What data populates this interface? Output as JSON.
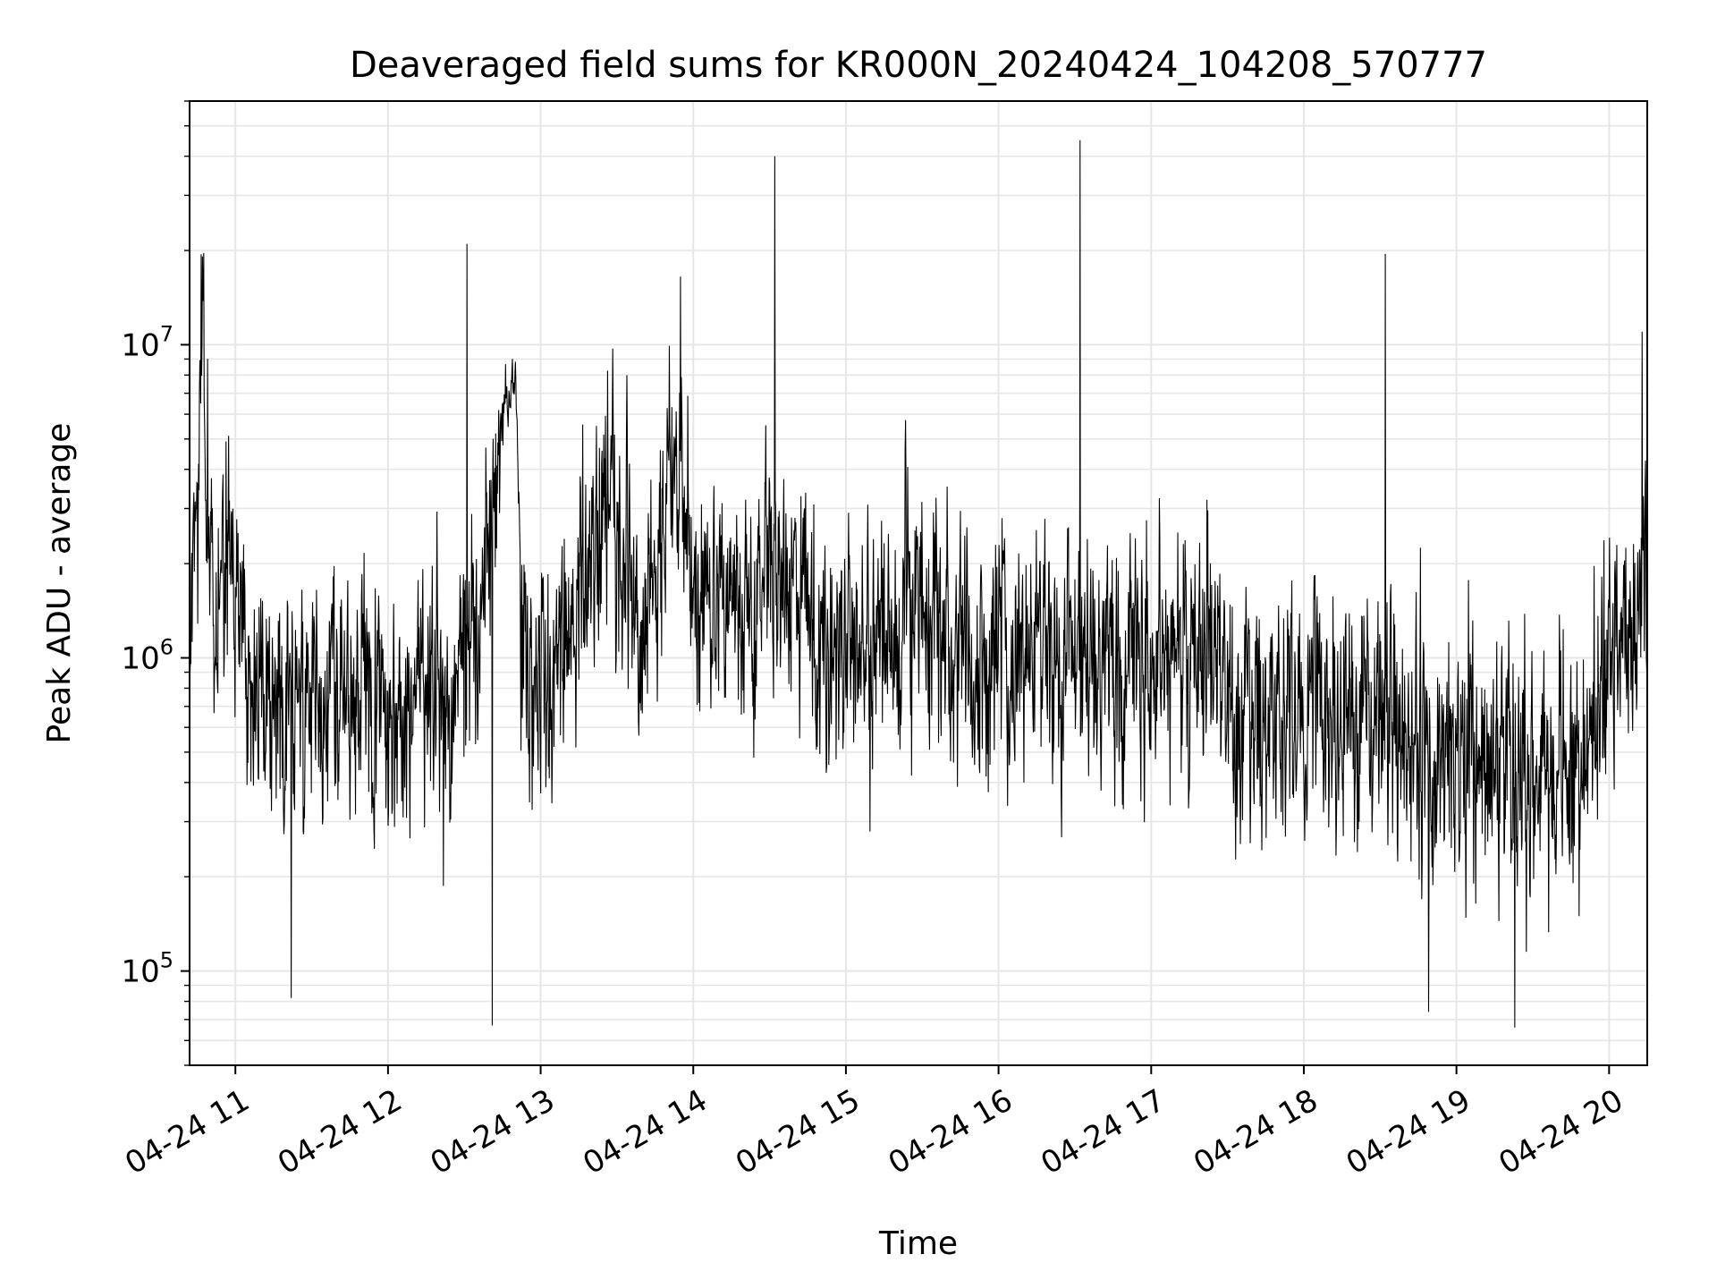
{
  "chart_data": {
    "type": "line",
    "title": "Deaveraged field sums for KR000N_20240424_104208_570777",
    "xlabel": "Time",
    "ylabel": "Peak ADU - average",
    "y_scale": "log",
    "ylim": [
      50000,
      60000000
    ],
    "xlim": [
      "2024-04-24 10:42",
      "2024-04-24 20:15"
    ],
    "x_ticks": [
      {
        "time": "2024-04-24 11:00",
        "label": "04-24 11"
      },
      {
        "time": "2024-04-24 12:00",
        "label": "04-24 12"
      },
      {
        "time": "2024-04-24 13:00",
        "label": "04-24 13"
      },
      {
        "time": "2024-04-24 14:00",
        "label": "04-24 14"
      },
      {
        "time": "2024-04-24 15:00",
        "label": "04-24 15"
      },
      {
        "time": "2024-04-24 16:00",
        "label": "04-24 16"
      },
      {
        "time": "2024-04-24 17:00",
        "label": "04-24 17"
      },
      {
        "time": "2024-04-24 18:00",
        "label": "04-24 18"
      },
      {
        "time": "2024-04-24 19:00",
        "label": "04-24 19"
      },
      {
        "time": "2024-04-24 20:00",
        "label": "04-24 20"
      }
    ],
    "y_ticks": [
      {
        "value": 100000,
        "base": "10",
        "exponent": "5"
      },
      {
        "value": 1000000,
        "base": "10",
        "exponent": "6"
      },
      {
        "value": 10000000,
        "base": "10",
        "exponent": "7"
      }
    ],
    "grid": true,
    "line_color": "#000000",
    "series": [
      {
        "x": [
          "2024-04-24 10:42",
          "2024-04-24 10:47",
          "2024-04-24 10:52",
          "2024-04-24 10:55",
          "2024-04-24 10:58",
          "2024-04-24 11:05",
          "2024-04-24 11:12",
          "2024-04-24 11:20",
          "2024-04-24 11:30",
          "2024-04-24 11:40",
          "2024-04-24 11:50",
          "2024-04-24 12:00",
          "2024-04-24 12:10",
          "2024-04-24 12:20",
          "2024-04-24 12:25",
          "2024-04-24 12:30",
          "2024-04-24 12:38",
          "2024-04-24 12:42",
          "2024-04-24 12:50",
          "2024-04-24 12:53",
          "2024-04-24 13:00",
          "2024-04-24 13:10",
          "2024-04-24 13:20",
          "2024-04-24 13:30",
          "2024-04-24 13:40",
          "2024-04-24 13:50",
          "2024-04-24 13:55",
          "2024-04-24 14:00",
          "2024-04-24 14:10",
          "2024-04-24 14:20",
          "2024-04-24 14:32",
          "2024-04-24 14:40",
          "2024-04-24 14:50",
          "2024-04-24 15:00",
          "2024-04-24 15:10",
          "2024-04-24 15:20",
          "2024-04-24 15:30",
          "2024-04-24 15:40",
          "2024-04-24 15:50",
          "2024-04-24 16:00",
          "2024-04-24 16:10",
          "2024-04-24 16:20",
          "2024-04-24 16:32",
          "2024-04-24 16:40",
          "2024-04-24 16:50",
          "2024-04-24 17:00",
          "2024-04-24 17:10",
          "2024-04-24 17:20",
          "2024-04-24 17:30",
          "2024-04-24 17:40",
          "2024-04-24 17:50",
          "2024-04-24 18:00",
          "2024-04-24 18:10",
          "2024-04-24 18:20",
          "2024-04-24 18:32",
          "2024-04-24 18:40",
          "2024-04-24 18:50",
          "2024-04-24 19:00",
          "2024-04-24 19:10",
          "2024-04-24 19:20",
          "2024-04-24 19:30",
          "2024-04-24 19:40",
          "2024-04-24 19:50",
          "2024-04-24 20:00",
          "2024-04-24 20:08",
          "2024-04-24 20:15"
        ],
        "y": [
          1200000,
          8000000,
          1000000,
          1800000,
          2500000,
          900000,
          700000,
          650000,
          700000,
          750000,
          750000,
          650000,
          700000,
          850000,
          900000,
          1100000,
          1500000,
          5000000,
          8500000,
          1000000,
          850000,
          1300000,
          2000000,
          2500000,
          1200000,
          3000000,
          5000000,
          1500000,
          1500000,
          1300000,
          2000000,
          1400000,
          1200000,
          1100000,
          1000000,
          1400000,
          1400000,
          1200000,
          1000000,
          1000000,
          1100000,
          1000000,
          1000000,
          900000,
          850000,
          1000000,
          1000000,
          900000,
          800000,
          700000,
          700000,
          700000,
          700000,
          650000,
          650000,
          550000,
          500000,
          500000,
          450000,
          420000,
          400000,
          450000,
          550000,
          900000,
          1400000,
          1900000
        ]
      }
    ],
    "spikes": [
      {
        "x": "2024-04-24 12:31",
        "y": 21000000
      },
      {
        "x": "2024-04-24 14:32",
        "y": 40000000
      },
      {
        "x": "2024-04-24 16:32",
        "y": 45000000
      },
      {
        "x": "2024-04-24 18:32",
        "y": 19500000
      },
      {
        "x": "2024-04-24 20:13",
        "y": 11000000
      },
      {
        "x": "2024-04-24 13:55",
        "y": 16500000
      },
      {
        "x": "2024-04-24 12:41",
        "y": 67000
      },
      {
        "x": "2024-04-24 19:23",
        "y": 66000
      },
      {
        "x": "2024-04-24 18:49",
        "y": 74000
      },
      {
        "x": "2024-04-24 11:22",
        "y": 82000
      }
    ]
  }
}
